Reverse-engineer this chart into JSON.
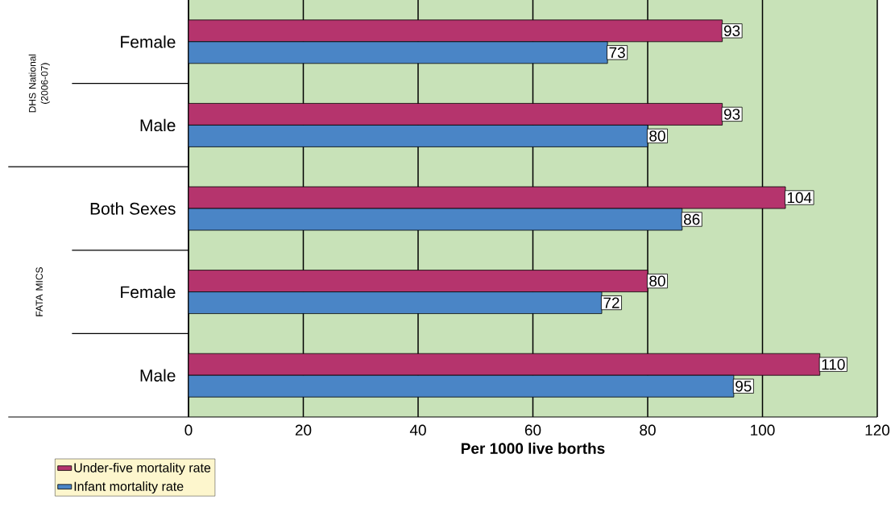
{
  "chart_data": {
    "type": "bar",
    "orientation": "horizontal",
    "categories": [
      "Female",
      "Male",
      "Both Sexes",
      "Female",
      "Male"
    ],
    "series": [
      {
        "name": "Under-five mortality rate",
        "color": "#b5346d",
        "values": [
          93,
          93,
          104,
          80,
          110
        ]
      },
      {
        "name": "Infant mortality rate",
        "color": "#4a85c6",
        "values": [
          73,
          80,
          86,
          72,
          95
        ]
      }
    ],
    "xlabel": "Per 1000 live borths",
    "xlim": [
      0,
      120
    ],
    "xticks": [
      0,
      20,
      40,
      60,
      80,
      100,
      120
    ],
    "grid": "x",
    "legend": "bottom left",
    "data_labels": true,
    "annotations": [
      "DHS National (2006-07)",
      "FATA MICS"
    ]
  }
}
